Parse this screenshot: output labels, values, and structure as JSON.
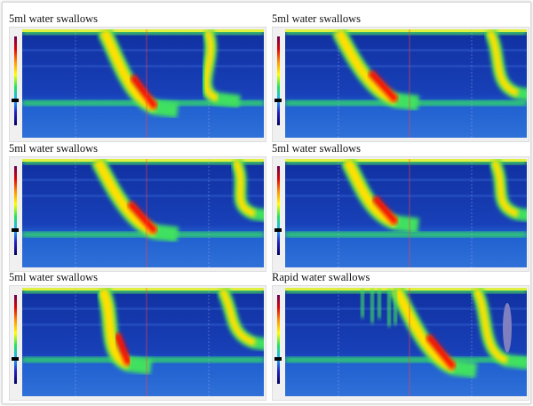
{
  "panels": [
    {
      "title": "5ml water swallows"
    },
    {
      "title": "5ml water swallows"
    },
    {
      "title": "5ml water swallows"
    },
    {
      "title": "5ml water swallows"
    },
    {
      "title": "5ml water swallows"
    },
    {
      "title": "Rapid water swallows"
    }
  ]
}
